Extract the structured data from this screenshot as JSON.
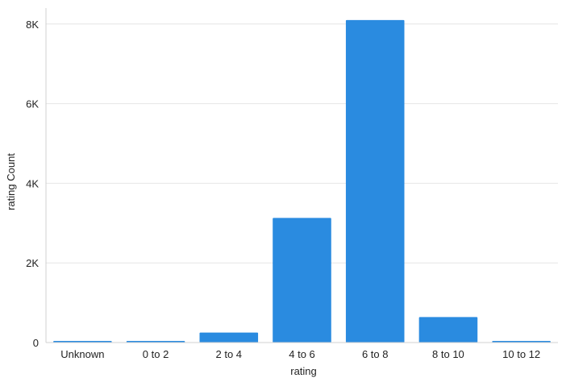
{
  "chart_data": {
    "type": "bar",
    "title": "",
    "xlabel": "rating",
    "ylabel": "rating Count",
    "categories": [
      "Unknown",
      "0 to 2",
      "2 to 4",
      "4 to 6",
      "6 to 8",
      "8 to 10",
      "10 to 12"
    ],
    "values": [
      20,
      15,
      250,
      3130,
      8100,
      640,
      20
    ],
    "ylim": [
      0,
      8400
    ],
    "yticks": [
      0,
      2000,
      4000,
      6000,
      8000
    ],
    "ytick_labels": [
      "0",
      "2K",
      "4K",
      "6K",
      "8K"
    ],
    "grid": true,
    "bar_color": "#2a8be0"
  }
}
